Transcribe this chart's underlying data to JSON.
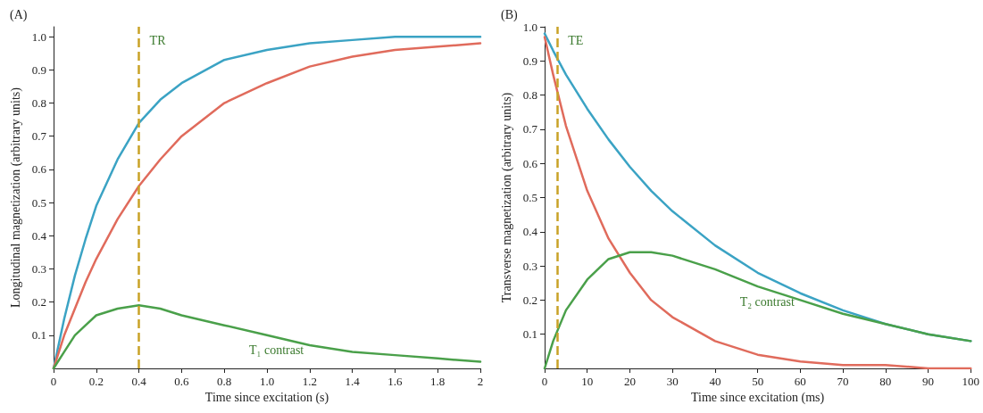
{
  "chart_data": [
    {
      "type": "line",
      "title": "(A)",
      "xlabel": "Time since excitation (s)",
      "ylabel": "Longitudinal magnetization (arbitrary units)",
      "x": [
        0,
        0.05,
        0.1,
        0.15,
        0.2,
        0.3,
        0.4,
        0.5,
        0.6,
        0.8,
        1.0,
        1.2,
        1.4,
        1.6,
        1.8,
        2.0
      ],
      "series": [
        {
          "color": "#3ba3c4",
          "values": [
            0,
            0.15,
            0.28,
            0.39,
            0.49,
            0.63,
            0.74,
            0.81,
            0.86,
            0.93,
            0.96,
            0.98,
            0.99,
            1.0,
            1.0,
            1.0
          ]
        },
        {
          "color": "#e06b5c",
          "values": [
            0,
            0.1,
            0.18,
            0.26,
            0.33,
            0.45,
            0.55,
            0.63,
            0.7,
            0.8,
            0.86,
            0.91,
            0.94,
            0.96,
            0.97,
            0.98
          ]
        },
        {
          "color": "#4aa04a",
          "values": [
            0,
            0.05,
            0.1,
            0.13,
            0.16,
            0.18,
            0.19,
            0.18,
            0.16,
            0.13,
            0.1,
            0.07,
            0.05,
            0.04,
            0.03,
            0.02
          ]
        }
      ],
      "xlim": [
        0,
        2
      ],
      "xticks": [
        0,
        0.2,
        0.4,
        0.6,
        0.8,
        {
          "value": 1,
          "label": "1.0"
        },
        1.2,
        1.4,
        1.6,
        1.8,
        2
      ],
      "ylim": [
        0,
        1.03
      ],
      "yticks": [
        0.1,
        0.2,
        0.3,
        0.4,
        0.5,
        0.6,
        0.7,
        0.8,
        0.9,
        {
          "value": 1,
          "label": "1.0"
        }
      ],
      "ref_lines": [
        {
          "axis": "x",
          "value": 0.4,
          "label": "TR",
          "color": "#c9a227",
          "line_style": "dashed"
        }
      ],
      "annotations": [
        "T₁ contrast"
      ],
      "grid": false,
      "marker": "none",
      "line_style": "solid"
    },
    {
      "type": "line",
      "title": "(B)",
      "xlabel": "Time since excitation (ms)",
      "ylabel": "Transverse magnetization (arbitrary units)",
      "x": [
        0,
        2,
        5,
        10,
        15,
        20,
        25,
        30,
        40,
        50,
        60,
        70,
        80,
        90,
        100
      ],
      "series": [
        {
          "color": "#3ba3c4",
          "values": [
            0.98,
            0.93,
            0.86,
            0.76,
            0.67,
            0.59,
            0.52,
            0.46,
            0.36,
            0.28,
            0.22,
            0.17,
            0.13,
            0.1,
            0.08
          ]
        },
        {
          "color": "#e06b5c",
          "values": [
            0.97,
            0.86,
            0.71,
            0.52,
            0.38,
            0.28,
            0.2,
            0.15,
            0.08,
            0.04,
            0.02,
            0.01,
            0.01,
            0,
            0
          ]
        },
        {
          "color": "#4aa04a",
          "values": [
            0,
            0.08,
            0.17,
            0.26,
            0.32,
            0.34,
            0.34,
            0.33,
            0.29,
            0.24,
            0.2,
            0.16,
            0.13,
            0.1,
            0.08
          ]
        }
      ],
      "xlim": [
        0,
        100
      ],
      "xticks": [
        0,
        10,
        20,
        30,
        40,
        50,
        60,
        70,
        80,
        90,
        100
      ],
      "ylim": [
        0,
        1.0
      ],
      "yticks": [
        0.1,
        0.2,
        0.3,
        0.4,
        0.5,
        0.6,
        0.7,
        0.8,
        0.9,
        {
          "value": 1,
          "label": "1.0"
        }
      ],
      "ref_lines": [
        {
          "axis": "x",
          "value": 3,
          "label": "TE",
          "color": "#c9a227",
          "line_style": "dashed"
        }
      ],
      "annotations": [
        "T₂ contrast"
      ],
      "grid": false,
      "marker": "none",
      "line_style": "solid"
    }
  ]
}
